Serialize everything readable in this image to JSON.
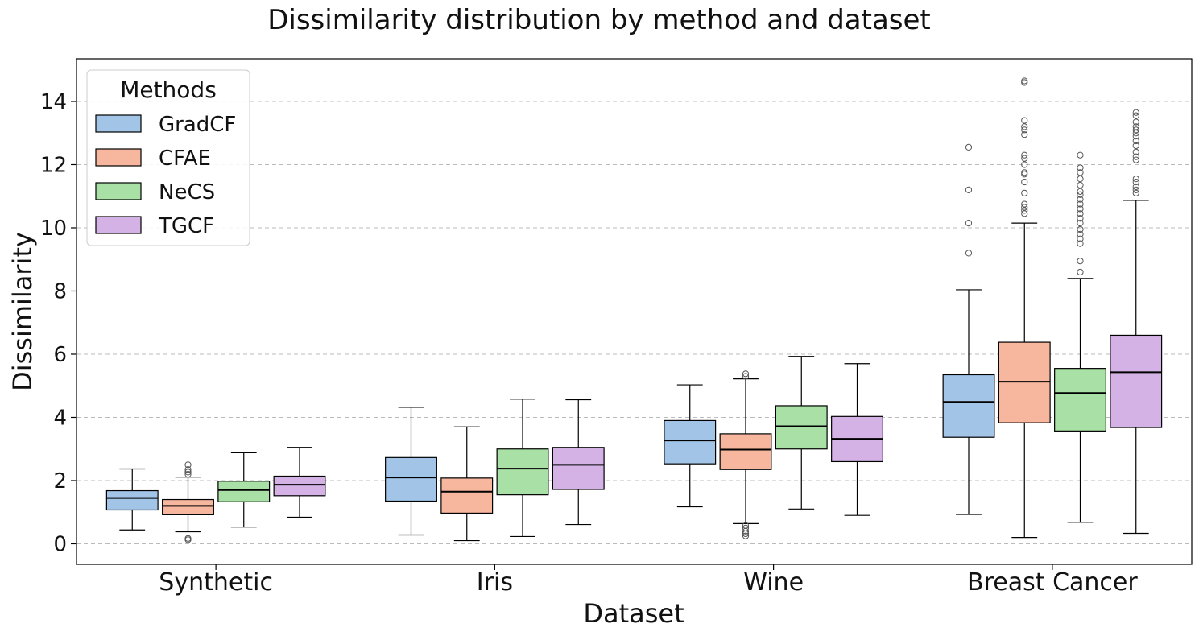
{
  "chart_data": {
    "type": "box",
    "title": "Dissimilarity distribution by method and dataset",
    "xlabel": "Dataset",
    "ylabel": "Dissimilarity",
    "ylim": [
      -0.65,
      15.35
    ],
    "yticks": [
      0,
      2,
      4,
      6,
      8,
      10,
      12,
      14
    ],
    "ytick_labels": [
      "0",
      "2",
      "4",
      "6",
      "8",
      "10",
      "12",
      "14"
    ],
    "grid": "horizontal dashed",
    "legend": {
      "title": "Methods",
      "placement": "top-left"
    },
    "categories": [
      "Synthetic",
      "Iris",
      "Wine",
      "Breast Cancer"
    ],
    "series": [
      {
        "name": "GradCF",
        "color": "#a1c4e7",
        "boxes": [
          {
            "whisker_low": 0.44,
            "q1": 1.07,
            "median": 1.45,
            "q3": 1.68,
            "whisker_high": 2.37,
            "outliers": []
          },
          {
            "whisker_low": 0.28,
            "q1": 1.35,
            "median": 2.1,
            "q3": 2.73,
            "whisker_high": 4.32,
            "outliers": []
          },
          {
            "whisker_low": 1.17,
            "q1": 2.53,
            "median": 3.27,
            "q3": 3.9,
            "whisker_high": 5.03,
            "outliers": []
          },
          {
            "whisker_low": 0.93,
            "q1": 3.37,
            "median": 4.49,
            "q3": 5.35,
            "whisker_high": 8.04,
            "outliers": [
              9.2,
              10.15,
              11.2,
              12.55
            ]
          }
        ]
      },
      {
        "name": "CFAE",
        "color": "#f7b69e",
        "boxes": [
          {
            "whisker_low": 0.38,
            "q1": 0.92,
            "median": 1.2,
            "q3": 1.4,
            "whisker_high": 2.11,
            "outliers": [
              0.13,
              0.17,
              2.2,
              2.27,
              2.35,
              2.5
            ]
          },
          {
            "whisker_low": 0.1,
            "q1": 0.97,
            "median": 1.65,
            "q3": 2.08,
            "whisker_high": 3.7,
            "outliers": []
          },
          {
            "whisker_low": 0.64,
            "q1": 2.35,
            "median": 2.98,
            "q3": 3.48,
            "whisker_high": 5.22,
            "outliers": [
              0.25,
              0.32,
              0.4,
              0.5,
              0.58,
              5.3,
              5.38
            ]
          },
          {
            "whisker_low": 0.2,
            "q1": 3.83,
            "median": 5.13,
            "q3": 6.38,
            "whisker_high": 10.15,
            "outliers": [
              10.45,
              10.55,
              10.65,
              10.75,
              11.1,
              11.45,
              11.7,
              11.75,
              12.0,
              12.2,
              12.3,
              12.95,
              13.1,
              13.2,
              13.4,
              14.6,
              14.65
            ]
          }
        ]
      },
      {
        "name": "NeCS",
        "color": "#a8e0a6",
        "boxes": [
          {
            "whisker_low": 0.53,
            "q1": 1.33,
            "median": 1.7,
            "q3": 1.98,
            "whisker_high": 2.88,
            "outliers": []
          },
          {
            "whisker_low": 0.23,
            "q1": 1.55,
            "median": 2.38,
            "q3": 3.0,
            "whisker_high": 4.58,
            "outliers": []
          },
          {
            "whisker_low": 1.1,
            "q1": 3.0,
            "median": 3.72,
            "q3": 4.37,
            "whisker_high": 5.93,
            "outliers": []
          },
          {
            "whisker_low": 0.68,
            "q1": 3.57,
            "median": 4.77,
            "q3": 5.55,
            "whisker_high": 8.4,
            "outliers": [
              8.6,
              8.95,
              9.5,
              9.65,
              9.8,
              9.95,
              10.15,
              10.3,
              10.45,
              10.6,
              10.75,
              10.9,
              11.05,
              11.15,
              11.35,
              11.55,
              11.75,
              11.9,
              12.3
            ]
          }
        ]
      },
      {
        "name": "TGCF",
        "color": "#d4b2e6",
        "boxes": [
          {
            "whisker_low": 0.84,
            "q1": 1.52,
            "median": 1.87,
            "q3": 2.14,
            "whisker_high": 3.05,
            "outliers": []
          },
          {
            "whisker_low": 0.61,
            "q1": 1.72,
            "median": 2.5,
            "q3": 3.05,
            "whisker_high": 4.56,
            "outliers": []
          },
          {
            "whisker_low": 0.9,
            "q1": 2.6,
            "median": 3.32,
            "q3": 4.03,
            "whisker_high": 5.7,
            "outliers": []
          },
          {
            "whisker_low": 0.33,
            "q1": 3.68,
            "median": 5.43,
            "q3": 6.6,
            "whisker_high": 10.87,
            "outliers": [
              11.1,
              11.2,
              11.3,
              11.45,
              11.55,
              12.15,
              12.25,
              12.4,
              12.6,
              12.75,
              12.9,
              13.0,
              13.1,
              13.2,
              13.35,
              13.55,
              13.65
            ]
          }
        ]
      }
    ]
  }
}
